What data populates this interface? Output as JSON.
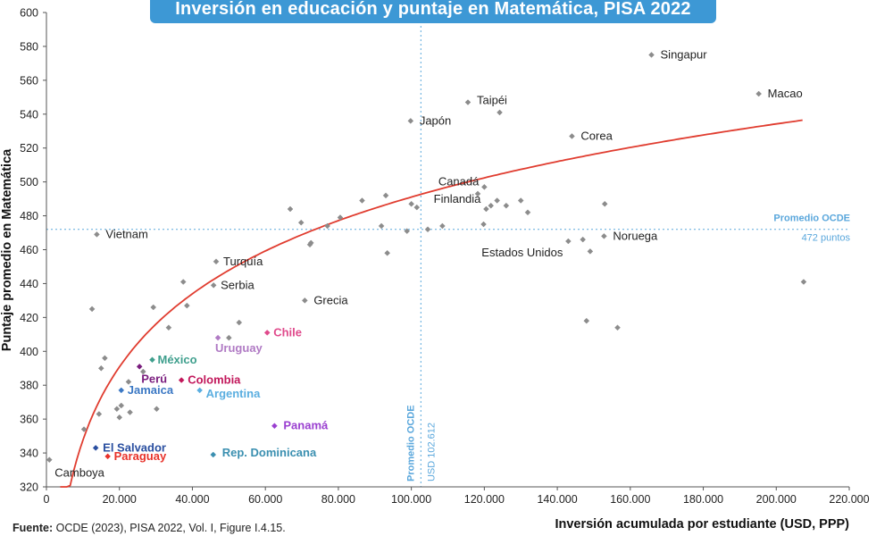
{
  "title": "Inversión en educación y puntaje en Matemática, PISA 2022",
  "source": {
    "label": "Fuente:",
    "text": "OCDE (2023), PISA 2022, Vol. I, Figure I.4.15."
  },
  "chart_data": {
    "type": "scatter",
    "title": "Inversión en educación y puntaje en Matemática, PISA 2022",
    "xlabel": "Inversión acumulada por estudiante (USD, PPP)",
    "ylabel": "Puntaje promedio en Matemática",
    "xlim": [
      0,
      220000
    ],
    "ylim": [
      320,
      600
    ],
    "x_ticks": [
      0,
      20000,
      40000,
      60000,
      80000,
      100000,
      120000,
      140000,
      160000,
      180000,
      200000,
      220000
    ],
    "x_tick_labels": [
      "0",
      "20.000",
      "40.000",
      "60.000",
      "80.000",
      "100.000",
      "120.000",
      "140.000",
      "160.000",
      "180.000",
      "200.000",
      "220.000"
    ],
    "y_ticks": [
      320,
      340,
      360,
      380,
      400,
      420,
      440,
      460,
      480,
      500,
      520,
      540,
      560,
      580,
      600
    ],
    "grid": false,
    "colors": {
      "default_point": "#8c8c8c",
      "trend": "#e03c2f",
      "reference": "#5aa7dc",
      "axis": "#555555"
    },
    "reference_lines": {
      "horizontal": {
        "value": 472,
        "label": "Promedio OCDE",
        "sublabel": "472 puntos"
      },
      "vertical": {
        "value": 102612,
        "label": "Promedio OCDE",
        "sublabel": "USD 102.612"
      }
    },
    "trend_line": {
      "type": "logarithmic",
      "a": -226.2,
      "b": 62.3
    },
    "labeled_points": [
      {
        "name": "Singapur",
        "x": 165800,
        "y": 575,
        "color": "#8c8c8c",
        "text_color": "#222222",
        "bold": false
      },
      {
        "name": "Macao",
        "x": 195200,
        "y": 552,
        "color": "#8c8c8c",
        "text_color": "#222222",
        "bold": false
      },
      {
        "name": "Taipéi",
        "x": 115500,
        "y": 547,
        "color": "#8c8c8c",
        "text_color": "#222222",
        "bold": false
      },
      {
        "name": "Japón",
        "x": 99800,
        "y": 536,
        "color": "#8c8c8c",
        "text_color": "#222222",
        "bold": false
      },
      {
        "name": "Corea",
        "x": 144000,
        "y": 527,
        "color": "#8c8c8c",
        "text_color": "#222222",
        "bold": false
      },
      {
        "name": "Canadá",
        "x": 120000,
        "y": 497,
        "color": "#8c8c8c",
        "text_color": "#222222",
        "bold": false
      },
      {
        "name": "Finlandia",
        "x": 120500,
        "y": 484,
        "color": "#8c8c8c",
        "text_color": "#222222",
        "bold": false
      },
      {
        "name": "Vietnam",
        "x": 13800,
        "y": 469,
        "color": "#8c8c8c",
        "text_color": "#222222",
        "bold": false
      },
      {
        "name": "Noruega",
        "x": 152800,
        "y": 468,
        "color": "#8c8c8c",
        "text_color": "#222222",
        "bold": false
      },
      {
        "name": "Estados Unidos",
        "x": 143000,
        "y": 465,
        "color": "#8c8c8c",
        "text_color": "#222222",
        "bold": false
      },
      {
        "name": "Turquía",
        "x": 46500,
        "y": 453,
        "color": "#8c8c8c",
        "text_color": "#222222",
        "bold": false
      },
      {
        "name": "Serbia",
        "x": 45800,
        "y": 439,
        "color": "#8c8c8c",
        "text_color": "#222222",
        "bold": false
      },
      {
        "name": "Grecia",
        "x": 70800,
        "y": 430,
        "color": "#8c8c8c",
        "text_color": "#222222",
        "bold": false
      },
      {
        "name": "Chile",
        "x": 60500,
        "y": 411,
        "color": "#e04a8c",
        "text_color": "#e04a8c",
        "bold": true
      },
      {
        "name": "Uruguay",
        "x": 47000,
        "y": 408,
        "color": "#b07ac4",
        "text_color": "#b07ac4",
        "bold": true
      },
      {
        "name": "México",
        "x": 29000,
        "y": 395,
        "color": "#3f9f8d",
        "text_color": "#3f9f8d",
        "bold": true
      },
      {
        "name": "Perú",
        "x": 25500,
        "y": 391,
        "color": "#7a1d7e",
        "text_color": "#7a1d7e",
        "bold": true
      },
      {
        "name": "Colombia",
        "x": 37000,
        "y": 383,
        "color": "#c2185b",
        "text_color": "#c2185b",
        "bold": true
      },
      {
        "name": "Argentina",
        "x": 42000,
        "y": 377,
        "color": "#5aaee0",
        "text_color": "#5aaee0",
        "bold": true
      },
      {
        "name": "Jamaica",
        "x": 20500,
        "y": 377,
        "color": "#3b78c4",
        "text_color": "#3b78c4",
        "bold": true
      },
      {
        "name": "Panamá",
        "x": 62500,
        "y": 356,
        "color": "#9a3fd0",
        "text_color": "#9a3fd0",
        "bold": true
      },
      {
        "name": "El Salvador",
        "x": 13500,
        "y": 343,
        "color": "#2a4fa0",
        "text_color": "#2a4fa0",
        "bold": true
      },
      {
        "name": "Rep. Dominicana",
        "x": 45700,
        "y": 339,
        "color": "#3a8fb0",
        "text_color": "#3a8fb0",
        "bold": true
      },
      {
        "name": "Paraguay",
        "x": 16800,
        "y": 338,
        "color": "#e8322a",
        "text_color": "#e8322a",
        "bold": true
      },
      {
        "name": "Camboya",
        "x": 800,
        "y": 336,
        "color": "#8c8c8c",
        "text_color": "#222222",
        "bold": false
      }
    ],
    "other_points": [
      {
        "x": 10300,
        "y": 354
      },
      {
        "x": 12500,
        "y": 425
      },
      {
        "x": 14400,
        "y": 363
      },
      {
        "x": 15000,
        "y": 390
      },
      {
        "x": 16000,
        "y": 396
      },
      {
        "x": 19300,
        "y": 366
      },
      {
        "x": 20000,
        "y": 361
      },
      {
        "x": 20500,
        "y": 368
      },
      {
        "x": 22500,
        "y": 382
      },
      {
        "x": 22900,
        "y": 364
      },
      {
        "x": 26500,
        "y": 388
      },
      {
        "x": 29300,
        "y": 426
      },
      {
        "x": 30200,
        "y": 366
      },
      {
        "x": 33500,
        "y": 414
      },
      {
        "x": 37500,
        "y": 441
      },
      {
        "x": 38500,
        "y": 427
      },
      {
        "x": 50000,
        "y": 408
      },
      {
        "x": 52800,
        "y": 417
      },
      {
        "x": 66800,
        "y": 484
      },
      {
        "x": 69800,
        "y": 476
      },
      {
        "x": 72200,
        "y": 463
      },
      {
        "x": 72500,
        "y": 464
      },
      {
        "x": 77000,
        "y": 474
      },
      {
        "x": 80500,
        "y": 479
      },
      {
        "x": 86500,
        "y": 489
      },
      {
        "x": 91800,
        "y": 474
      },
      {
        "x": 93000,
        "y": 492
      },
      {
        "x": 93400,
        "y": 458
      },
      {
        "x": 98800,
        "y": 471
      },
      {
        "x": 100000,
        "y": 487
      },
      {
        "x": 101500,
        "y": 485
      },
      {
        "x": 104500,
        "y": 472
      },
      {
        "x": 108500,
        "y": 474
      },
      {
        "x": 118200,
        "y": 493
      },
      {
        "x": 119800,
        "y": 475
      },
      {
        "x": 121800,
        "y": 486
      },
      {
        "x": 123500,
        "y": 489
      },
      {
        "x": 124200,
        "y": 541
      },
      {
        "x": 126000,
        "y": 486
      },
      {
        "x": 130000,
        "y": 489
      },
      {
        "x": 131900,
        "y": 482
      },
      {
        "x": 147000,
        "y": 466
      },
      {
        "x": 148000,
        "y": 418
      },
      {
        "x": 149000,
        "y": 459
      },
      {
        "x": 153000,
        "y": 487
      },
      {
        "x": 156500,
        "y": 414
      },
      {
        "x": 207500,
        "y": 441
      }
    ]
  }
}
